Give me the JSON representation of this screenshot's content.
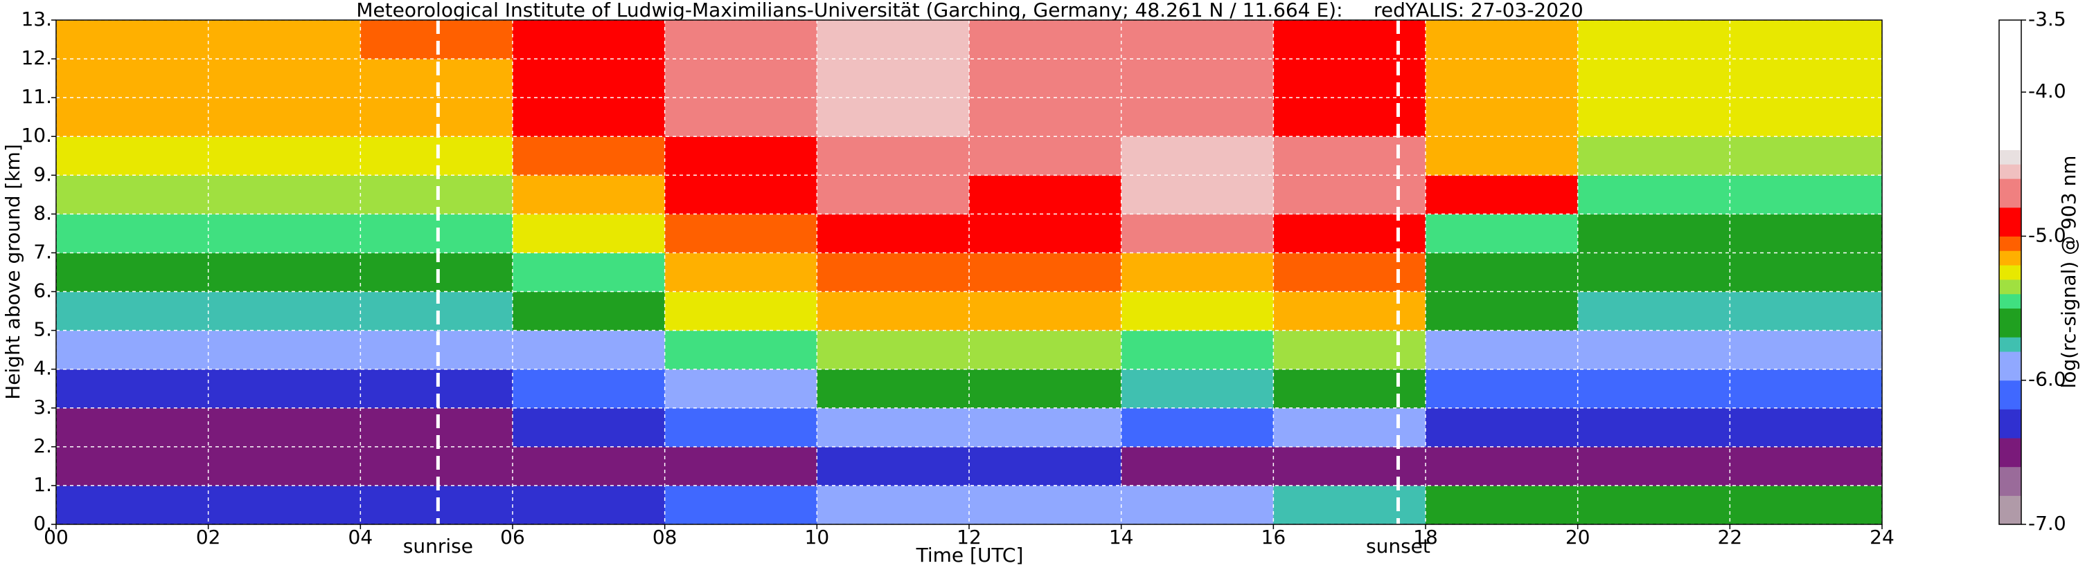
{
  "chart_data": {
    "type": "heatmap",
    "title": "Meteorological Institute of Ludwig-Maximilians-Universität (Garching, Germany; 48.261 N / 11.664 E):     redYALIS: 27-03-2020",
    "x_label": "Time [UTC]",
    "y_label": "Height above ground [km]",
    "x": [
      0,
      2,
      4,
      6,
      8,
      10,
      12,
      14,
      16,
      18,
      20,
      22,
      24
    ],
    "y": [
      0,
      1,
      2,
      3,
      4,
      5,
      6,
      7,
      8,
      9,
      10,
      11,
      12,
      13
    ],
    "z": [
      [
        -6.3,
        -6.3,
        -6.3,
        -6.3,
        -6.2,
        -6.0,
        -6.0,
        -6.0,
        -5.8,
        -5.7,
        -5.7,
        -5.7
      ],
      [
        -6.6,
        -6.6,
        -6.6,
        -6.6,
        -6.5,
        -6.4,
        -6.4,
        -6.5,
        -6.5,
        -6.6,
        -6.6,
        -6.6
      ],
      [
        -6.5,
        -6.5,
        -6.5,
        -6.4,
        -6.2,
        -6.0,
        -6.0,
        -6.1,
        -6.0,
        -6.3,
        -6.4,
        -6.4
      ],
      [
        -6.3,
        -6.3,
        -6.3,
        -6.2,
        -5.9,
        -5.7,
        -5.7,
        -5.8,
        -5.7,
        -6.1,
        -6.2,
        -6.2
      ],
      [
        -6.0,
        -6.0,
        -6.0,
        -5.9,
        -5.5,
        -5.4,
        -5.4,
        -5.5,
        -5.4,
        -5.9,
        -6.0,
        -6.0
      ],
      [
        -5.8,
        -5.8,
        -5.8,
        -5.7,
        -5.3,
        -5.2,
        -5.2,
        -5.3,
        -5.2,
        -5.7,
        -5.8,
        -5.8
      ],
      [
        -5.7,
        -5.7,
        -5.7,
        -5.5,
        -5.2,
        -5.1,
        -5.1,
        -5.2,
        -5.1,
        -5.6,
        -5.7,
        -5.7
      ],
      [
        -5.5,
        -5.5,
        -5.5,
        -5.3,
        -5.1,
        -5.0,
        -5.0,
        -4.8,
        -5.0,
        -5.5,
        -5.6,
        -5.6
      ],
      [
        -5.4,
        -5.4,
        -5.4,
        -5.2,
        -5.0,
        -4.8,
        -4.9,
        -4.6,
        -4.8,
        -5.0,
        -5.5,
        -5.5
      ],
      [
        -5.3,
        -5.3,
        -5.3,
        -5.1,
        -4.9,
        -4.7,
        -4.8,
        -4.6,
        -4.8,
        -5.2,
        -5.4,
        -5.4
      ],
      [
        -5.2,
        -5.2,
        -5.2,
        -5.0,
        -4.8,
        -4.6,
        -4.7,
        -4.8,
        -4.9,
        -5.2,
        -5.3,
        -5.3
      ],
      [
        -5.2,
        -5.2,
        -5.2,
        -5.0,
        -4.7,
        -4.6,
        -4.7,
        -4.8,
        -4.9,
        -5.2,
        -5.3,
        -5.3
      ],
      [
        -5.2,
        -5.2,
        -5.1,
        -5.0,
        -4.7,
        -4.6,
        -4.7,
        -4.8,
        -4.9,
        -5.2,
        -5.3,
        -5.3
      ]
    ],
    "xlim": [
      0,
      24
    ],
    "ylim": [
      0,
      13
    ],
    "xticks": [
      {
        "value": 0,
        "label": "00"
      },
      {
        "value": 2,
        "label": "02"
      },
      {
        "value": 4,
        "label": "04"
      },
      {
        "value": 6,
        "label": "06"
      },
      {
        "value": 8,
        "label": "08"
      },
      {
        "value": 10,
        "label": "10"
      },
      {
        "value": 12,
        "label": "12"
      },
      {
        "value": 14,
        "label": "14"
      },
      {
        "value": 16,
        "label": "16"
      },
      {
        "value": 18,
        "label": "18"
      },
      {
        "value": 20,
        "label": "20"
      },
      {
        "value": 22,
        "label": "22"
      },
      {
        "value": 24,
        "label": "24"
      }
    ],
    "yticks": [
      {
        "value": 0,
        "label": "0."
      },
      {
        "value": 1,
        "label": "1."
      },
      {
        "value": 2,
        "label": "2."
      },
      {
        "value": 3,
        "label": "3."
      },
      {
        "value": 4,
        "label": "4."
      },
      {
        "value": 5,
        "label": "5."
      },
      {
        "value": 6,
        "label": "6."
      },
      {
        "value": 7,
        "label": "7."
      },
      {
        "value": 8,
        "label": "8."
      },
      {
        "value": 9,
        "label": "9."
      },
      {
        "value": 10,
        "label": "10."
      },
      {
        "value": 11,
        "label": "11."
      },
      {
        "value": 12,
        "label": "12."
      },
      {
        "value": 13,
        "label": "13."
      }
    ],
    "grid": true,
    "annotations": [
      {
        "x": 5.02,
        "label": "sunrise"
      },
      {
        "x": 17.64,
        "label": "sunset"
      }
    ],
    "colorbar": {
      "label": "log(rc-signal) @ 903 nm",
      "lim": [
        -7.0,
        -3.5
      ],
      "ticks": [
        {
          "value": -3.5,
          "label": "-3.5"
        },
        {
          "value": -4.0,
          "label": "-4.0"
        },
        {
          "value": -5.0,
          "label": "-5.0"
        },
        {
          "value": -6.0,
          "label": "-6.0"
        },
        {
          "value": -7.0,
          "label": "-7.0"
        }
      ]
    },
    "colorscale": [
      {
        "value": -7.0,
        "color": "#b09aa8"
      },
      {
        "value": -6.8,
        "color": "#9a6b9a"
      },
      {
        "value": -6.6,
        "color": "#7a1a7a"
      },
      {
        "value": -6.4,
        "color": "#3030d0"
      },
      {
        "value": -6.2,
        "color": "#4068ff"
      },
      {
        "value": -6.0,
        "color": "#90a8ff"
      },
      {
        "value": -5.8,
        "color": "#40c0b0"
      },
      {
        "value": -5.7,
        "color": "#20a020"
      },
      {
        "value": -5.5,
        "color": "#40e080"
      },
      {
        "value": -5.4,
        "color": "#a0e040"
      },
      {
        "value": -5.3,
        "color": "#e8e800"
      },
      {
        "value": -5.2,
        "color": "#ffb000"
      },
      {
        "value": -5.1,
        "color": "#ff6000"
      },
      {
        "value": -5.0,
        "color": "#ff0000"
      },
      {
        "value": -4.8,
        "color": "#f08080"
      },
      {
        "value": -4.6,
        "color": "#f0c0c0"
      },
      {
        "value": -4.5,
        "color": "#e8e0e0"
      },
      {
        "value": -4.4,
        "color": "#ffffff"
      }
    ]
  }
}
